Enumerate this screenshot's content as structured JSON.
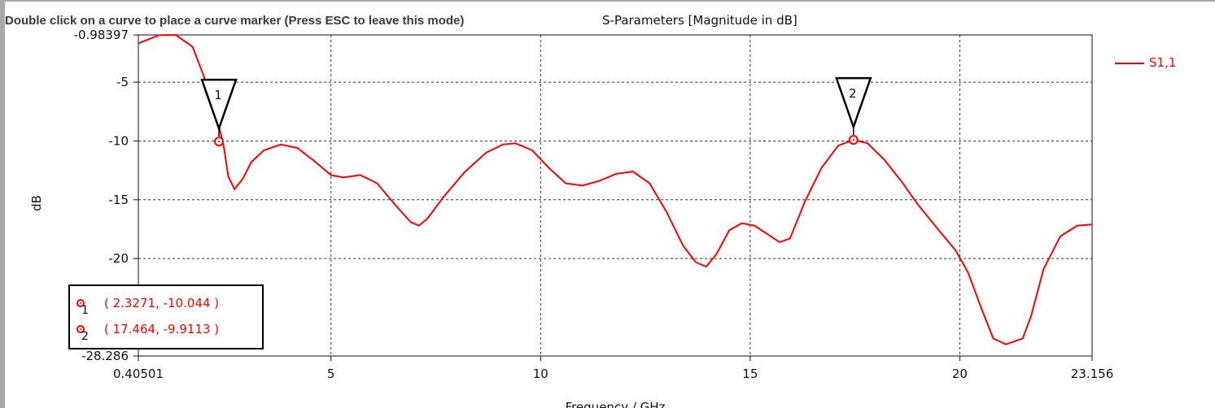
{
  "mode_hint": "Double click on a curve to place a curve marker (Press ESC to leave this mode)",
  "chart_data": {
    "type": "line",
    "title": "S-Parameters [Magnitude in dB]",
    "xlabel": "Frequency / GHz",
    "ylabel": "dB",
    "xlim": [
      0.40501,
      23.156
    ],
    "ylim": [
      -28.286,
      -0.98397
    ],
    "x_ticks": [
      "0.40501",
      "5",
      "10",
      "15",
      "20",
      "23.156"
    ],
    "y_ticks": [
      "-0.98397",
      "-5",
      "-10",
      "-15",
      "-20",
      "-28.286"
    ],
    "grid": true,
    "legend_position": "top-right",
    "series": [
      {
        "name": "S1,1",
        "color": "#ff0000",
        "x": [
          0.40501,
          0.9,
          1.3,
          1.7,
          2.0,
          2.25,
          2.45,
          2.55,
          2.7,
          2.9,
          3.1,
          3.4,
          3.8,
          4.2,
          4.6,
          5.0,
          5.3,
          5.7,
          6.1,
          6.5,
          6.9,
          7.1,
          7.3,
          7.7,
          8.2,
          8.7,
          9.1,
          9.4,
          9.8,
          10.2,
          10.6,
          11.0,
          11.4,
          11.8,
          12.2,
          12.6,
          13.0,
          13.4,
          13.7,
          13.95,
          14.2,
          14.5,
          14.8,
          15.1,
          15.4,
          15.7,
          15.95,
          16.3,
          16.7,
          17.1,
          17.464,
          17.8,
          18.2,
          18.6,
          19.0,
          19.5,
          19.9,
          20.2,
          20.5,
          20.8,
          21.1,
          21.5,
          21.7,
          22.0,
          22.4,
          22.8,
          23.156
        ],
        "y": [
          -1.7,
          -1.0,
          -0.98,
          -2.0,
          -4.8,
          -7.5,
          -10.6,
          -13.0,
          -14.1,
          -13.2,
          -11.8,
          -10.8,
          -10.3,
          -10.6,
          -11.7,
          -12.9,
          -13.1,
          -12.9,
          -13.6,
          -15.3,
          -16.9,
          -17.2,
          -16.6,
          -14.7,
          -12.6,
          -11.0,
          -10.3,
          -10.2,
          -10.8,
          -12.3,
          -13.6,
          -13.8,
          -13.4,
          -12.8,
          -12.6,
          -13.6,
          -16.0,
          -18.9,
          -20.3,
          -20.7,
          -19.6,
          -17.6,
          -17.0,
          -17.2,
          -17.9,
          -18.6,
          -18.3,
          -15.2,
          -12.3,
          -10.4,
          -9.9113,
          -10.2,
          -11.6,
          -13.4,
          -15.4,
          -17.6,
          -19.3,
          -21.2,
          -24.1,
          -26.8,
          -27.3,
          -26.8,
          -24.9,
          -20.9,
          -18.1,
          -17.2,
          -17.1
        ]
      }
    ],
    "markers": [
      {
        "id": "1",
        "x": 2.3271,
        "y": -10.044,
        "label": "( 2.3271, -10.044 )"
      },
      {
        "id": "2",
        "x": 17.464,
        "y": -9.9113,
        "label": "( 17.464, -9.9113 )"
      }
    ]
  }
}
